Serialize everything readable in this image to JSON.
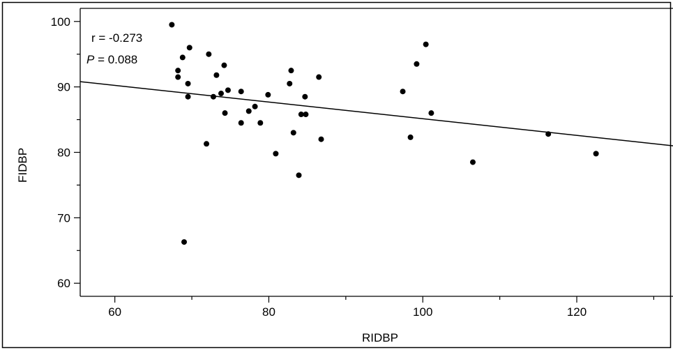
{
  "chart_data": {
    "type": "scatter",
    "xlabel": "RIDBP",
    "ylabel": "FIDBP",
    "xlim": [
      55.5,
      132.5
    ],
    "ylim": [
      58,
      102
    ],
    "x_ticks_major": [
      60,
      80,
      100,
      120
    ],
    "x_ticks_minor": [
      70,
      90,
      110,
      130
    ],
    "y_ticks_major": [
      60,
      70,
      80,
      90,
      100
    ],
    "y_ticks_minor": [
      65,
      75,
      85,
      95
    ],
    "grid": false,
    "annotation": {
      "r_text": "r = -0.273",
      "p_symbol": "P",
      "p_text": " = 0.088"
    },
    "trendline": {
      "x": [
        55.5,
        132.5
      ],
      "y": [
        90.8,
        81.0
      ]
    },
    "points": [
      {
        "x": 67.4,
        "y": 99.5
      },
      {
        "x": 68.8,
        "y": 94.5
      },
      {
        "x": 69.7,
        "y": 96.0
      },
      {
        "x": 68.2,
        "y": 92.5
      },
      {
        "x": 68.2,
        "y": 91.5
      },
      {
        "x": 69.5,
        "y": 90.5
      },
      {
        "x": 69.5,
        "y": 88.5
      },
      {
        "x": 69.0,
        "y": 66.3
      },
      {
        "x": 72.2,
        "y": 95.0
      },
      {
        "x": 73.2,
        "y": 91.8
      },
      {
        "x": 74.2,
        "y": 93.3
      },
      {
        "x": 72.8,
        "y": 88.5
      },
      {
        "x": 73.8,
        "y": 89.0
      },
      {
        "x": 74.7,
        "y": 89.5
      },
      {
        "x": 74.3,
        "y": 86.0
      },
      {
        "x": 71.9,
        "y": 81.3
      },
      {
        "x": 76.4,
        "y": 89.3
      },
      {
        "x": 76.4,
        "y": 84.5
      },
      {
        "x": 77.4,
        "y": 86.3
      },
      {
        "x": 78.2,
        "y": 87.0
      },
      {
        "x": 78.9,
        "y": 84.5
      },
      {
        "x": 79.9,
        "y": 88.8
      },
      {
        "x": 80.9,
        "y": 79.8
      },
      {
        "x": 82.9,
        "y": 92.5
      },
      {
        "x": 82.7,
        "y": 90.5
      },
      {
        "x": 83.2,
        "y": 83.0
      },
      {
        "x": 84.2,
        "y": 85.8
      },
      {
        "x": 84.8,
        "y": 85.8
      },
      {
        "x": 84.7,
        "y": 88.5
      },
      {
        "x": 83.9,
        "y": 76.5
      },
      {
        "x": 86.5,
        "y": 91.5
      },
      {
        "x": 86.8,
        "y": 82.0
      },
      {
        "x": 97.4,
        "y": 89.3
      },
      {
        "x": 99.2,
        "y": 93.5
      },
      {
        "x": 100.4,
        "y": 96.5
      },
      {
        "x": 98.4,
        "y": 82.3
      },
      {
        "x": 101.1,
        "y": 86.0
      },
      {
        "x": 106.5,
        "y": 78.5
      },
      {
        "x": 116.3,
        "y": 82.8
      },
      {
        "x": 122.5,
        "y": 79.8
      }
    ]
  }
}
